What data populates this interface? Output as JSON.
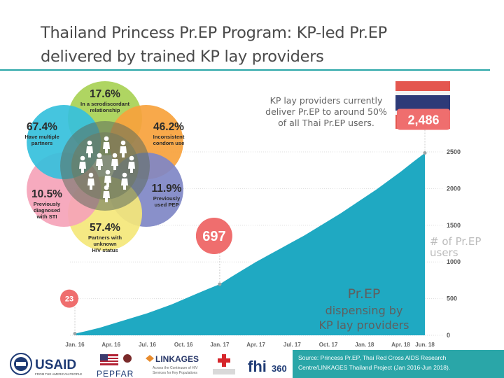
{
  "page": {
    "title_line1": "Thailand Princess Pr.EP Program: KP-led Pr.EP",
    "title_line2": "delivered by trained KP lay providers",
    "source_line1": "Source: Princess Pr.EP, Thai Red Cross AIDS Research",
    "source_line2": "Centre/LINKAGES Thailand Project (Jan 2016-Jun 2018).",
    "colors": {
      "accent": "#2aa6a8",
      "chart_area": "#1fa9c2",
      "badge": "#ef6e6e"
    }
  },
  "petals": [
    {
      "pct": "17.6%",
      "lines": [
        "In a serodiscordant",
        "relationship"
      ],
      "color": "#a8d155"
    },
    {
      "pct": "46.2%",
      "lines": [
        "Inconsistent",
        "condom use"
      ],
      "color": "#f7a23c"
    },
    {
      "pct": "11.9%",
      "lines": [
        "Previously",
        "used PEP"
      ],
      "color": "#7f87c6"
    },
    {
      "pct": "57.4%",
      "lines": [
        "Partners with",
        "unknown",
        "HIV status"
      ],
      "color": "#f4e77a"
    },
    {
      "pct": "10.5%",
      "lines": [
        "Previously",
        "diagnosed",
        "with STI"
      ],
      "color": "#f5a3b8"
    },
    {
      "pct": "67.4%",
      "lines": [
        "Have multiple",
        "partners"
      ],
      "color": "#35c0dc"
    }
  ],
  "chart_data": {
    "type": "area",
    "x": [
      "Jan. 16",
      "Feb. 16",
      "Mar. 16",
      "Apr. 16",
      "May 16",
      "Jun. 16",
      "Jul. 16",
      "Aug. 16",
      "Sep. 16",
      "Oct. 16",
      "Nov. 16",
      "Dec. 16",
      "Jan. 17",
      "Feb. 17",
      "Mar. 17",
      "Apr. 17",
      "May 17",
      "Jun. 17",
      "Jul. 17",
      "Aug. 17",
      "Sep. 17",
      "Oct. 17",
      "Nov. 17",
      "Dec. 17",
      "Jan. 18",
      "Feb. 18",
      "Mar. 18",
      "Apr. 18",
      "May 18",
      "Jun. 18"
    ],
    "x_tick_labels": [
      "Jan. 16",
      "Apr. 16",
      "Jul. 16",
      "Oct. 16",
      "Jan. 17",
      "Apr. 17",
      "Jul. 17",
      "Oct. 17",
      "Jan. 18",
      "Apr. 18",
      "Jun. 18"
    ],
    "series": [
      {
        "values": [
          23,
          60,
          100,
          150,
          200,
          250,
          300,
          360,
          420,
          490,
          560,
          630,
          697,
          800,
          900,
          1000,
          1090,
          1180,
          1270,
          1360,
          1460,
          1560,
          1660,
          1770,
          1880,
          1990,
          2110,
          2230,
          2360,
          2486
        ]
      }
    ],
    "ylim": [
      0,
      2500
    ],
    "y_ticks": [
      "0",
      "500",
      "1000",
      "1500",
      "2000",
      "2500"
    ],
    "ylabel": "# of Pr.EP users",
    "annotated_points": [
      {
        "x": "Jan. 16",
        "label": "23"
      },
      {
        "x": "Jan. 17",
        "label": "697"
      },
      {
        "x": "Jun. 18",
        "label": "2,486"
      }
    ],
    "callout_line1": "KP lay providers currently",
    "callout_line2": "deliver Pr.EP to around 50%",
    "callout_line3": "of all Thai Pr.EP users.",
    "area_title_line1": "Pr.EP",
    "area_title_line2": "dispensing by",
    "area_title_line3": "KP lay providers"
  },
  "logos": {
    "usaid": "USAID",
    "usaid_sub": "FROM THE AMERICAN PEOPLE",
    "pepfar": "PEPFAR",
    "linkages": "LINKAGES",
    "linkages_sub1": "Across the Continuum of HIV",
    "linkages_sub2": "Services for Key Populations",
    "fhi": "fhi",
    "fhi_num": "360"
  }
}
